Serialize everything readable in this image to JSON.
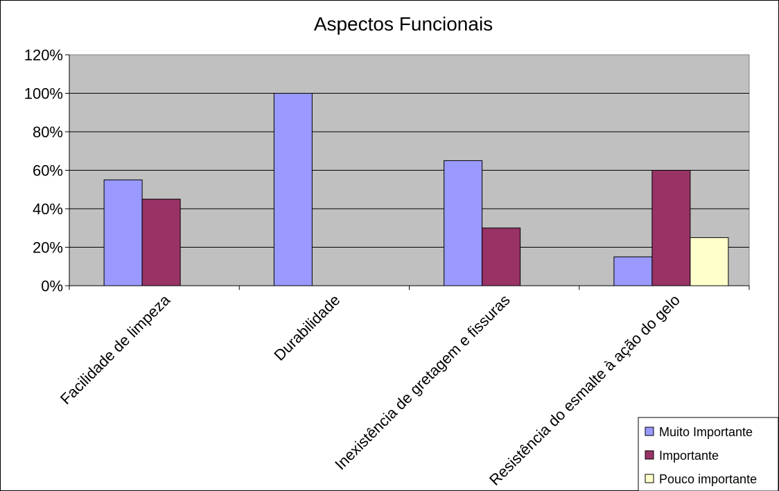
{
  "chart_data": {
    "type": "bar",
    "title": "Aspectos Funcionais",
    "xlabel": "",
    "ylabel": "",
    "categories": [
      "Facilidade de limpeza",
      "Durabilidade",
      "Inexistência de gretagem e fissuras",
      "Resistência do esmalte à ação do gelo"
    ],
    "series": [
      {
        "name": "Muito Importante",
        "color": "#9999FF",
        "values": [
          55,
          100,
          65,
          15
        ]
      },
      {
        "name": "Importante",
        "color": "#993366",
        "values": [
          45,
          0,
          30,
          60
        ]
      },
      {
        "name": "Pouco importante",
        "color": "#FFFFCC",
        "values": [
          0,
          0,
          0,
          25
        ]
      }
    ],
    "ylim": [
      0,
      120
    ],
    "yticks": [
      "0%",
      "20%",
      "40%",
      "60%",
      "80%",
      "100%",
      "120%"
    ],
    "grid": true,
    "plot_background": "#C0C0C0",
    "legend_position": "bottom-right"
  }
}
